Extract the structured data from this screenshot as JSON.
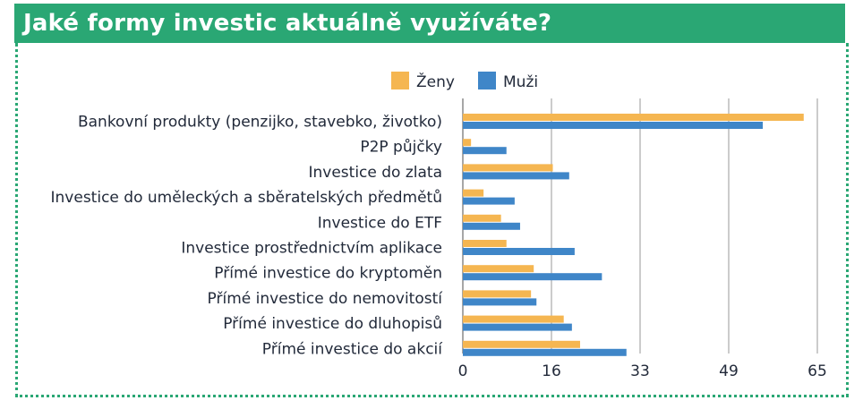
{
  "title": "Jaké formy investic aktuálně využíváte?",
  "chart_data": {
    "type": "bar",
    "orientation": "horizontal",
    "categories": [
      "Bankovní produkty (penzijko, stavebko, životko)",
      "P2P půjčky",
      "Investice do zlata",
      "Investice do uměleckých a sběratelských předmětů",
      "Investice do ETF",
      "Investice prostřednictvím aplikace",
      "Přímé investice do kryptoměn",
      "Přímé investice do nemovitostí",
      "Přímé investice do dluhopisů",
      "Přímé investice do akcií"
    ],
    "series": [
      {
        "name": "Ženy",
        "color": "#f5b651",
        "values": [
          62.5,
          1.5,
          16.5,
          3.8,
          7,
          8,
          13,
          12.5,
          18.5,
          21.5
        ]
      },
      {
        "name": "Muži",
        "color": "#3f86c8",
        "values": [
          55,
          8,
          19.5,
          9.5,
          10.5,
          20.5,
          25.5,
          13.5,
          20,
          30
        ]
      }
    ],
    "x_ticks": [
      "0",
      "16",
      "33",
      "49",
      "65"
    ],
    "xlim": [
      0,
      65
    ],
    "grid": true,
    "legend_position": "top"
  }
}
